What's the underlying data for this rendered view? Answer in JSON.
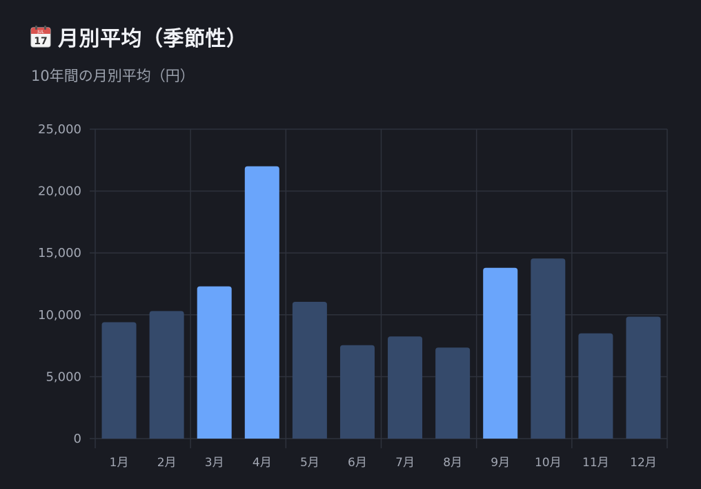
{
  "header": {
    "icon": "calendar-icon",
    "icon_month": "JUL",
    "icon_day": "17",
    "title": "月別平均（季節性）",
    "subtitle": "10年間の月別平均（円）"
  },
  "colors": {
    "background": "#191b22",
    "bar_default": "#354a6b",
    "bar_highlight": "#6aa5fb",
    "grid": "#2e323c"
  },
  "chart_data": {
    "type": "bar",
    "title": "月別平均（季節性）",
    "subtitle": "10年間の月別平均（円）",
    "categories": [
      "1月",
      "2月",
      "3月",
      "4月",
      "5月",
      "6月",
      "7月",
      "8月",
      "9月",
      "10月",
      "11月",
      "12月"
    ],
    "values": [
      9400,
      10300,
      12300,
      22000,
      11050,
      7550,
      8250,
      7350,
      13800,
      14550,
      8500,
      9850
    ],
    "highlighted": [
      "3月",
      "4月",
      "9月"
    ],
    "ylim": [
      0,
      25000
    ],
    "yticks": [
      0,
      5000,
      10000,
      15000,
      20000,
      25000
    ],
    "ytick_labels": [
      "0",
      "5,000",
      "10,000",
      "15,000",
      "20,000",
      "25,000"
    ],
    "xlabel": "",
    "ylabel": "",
    "grid": true,
    "legend": "none"
  }
}
